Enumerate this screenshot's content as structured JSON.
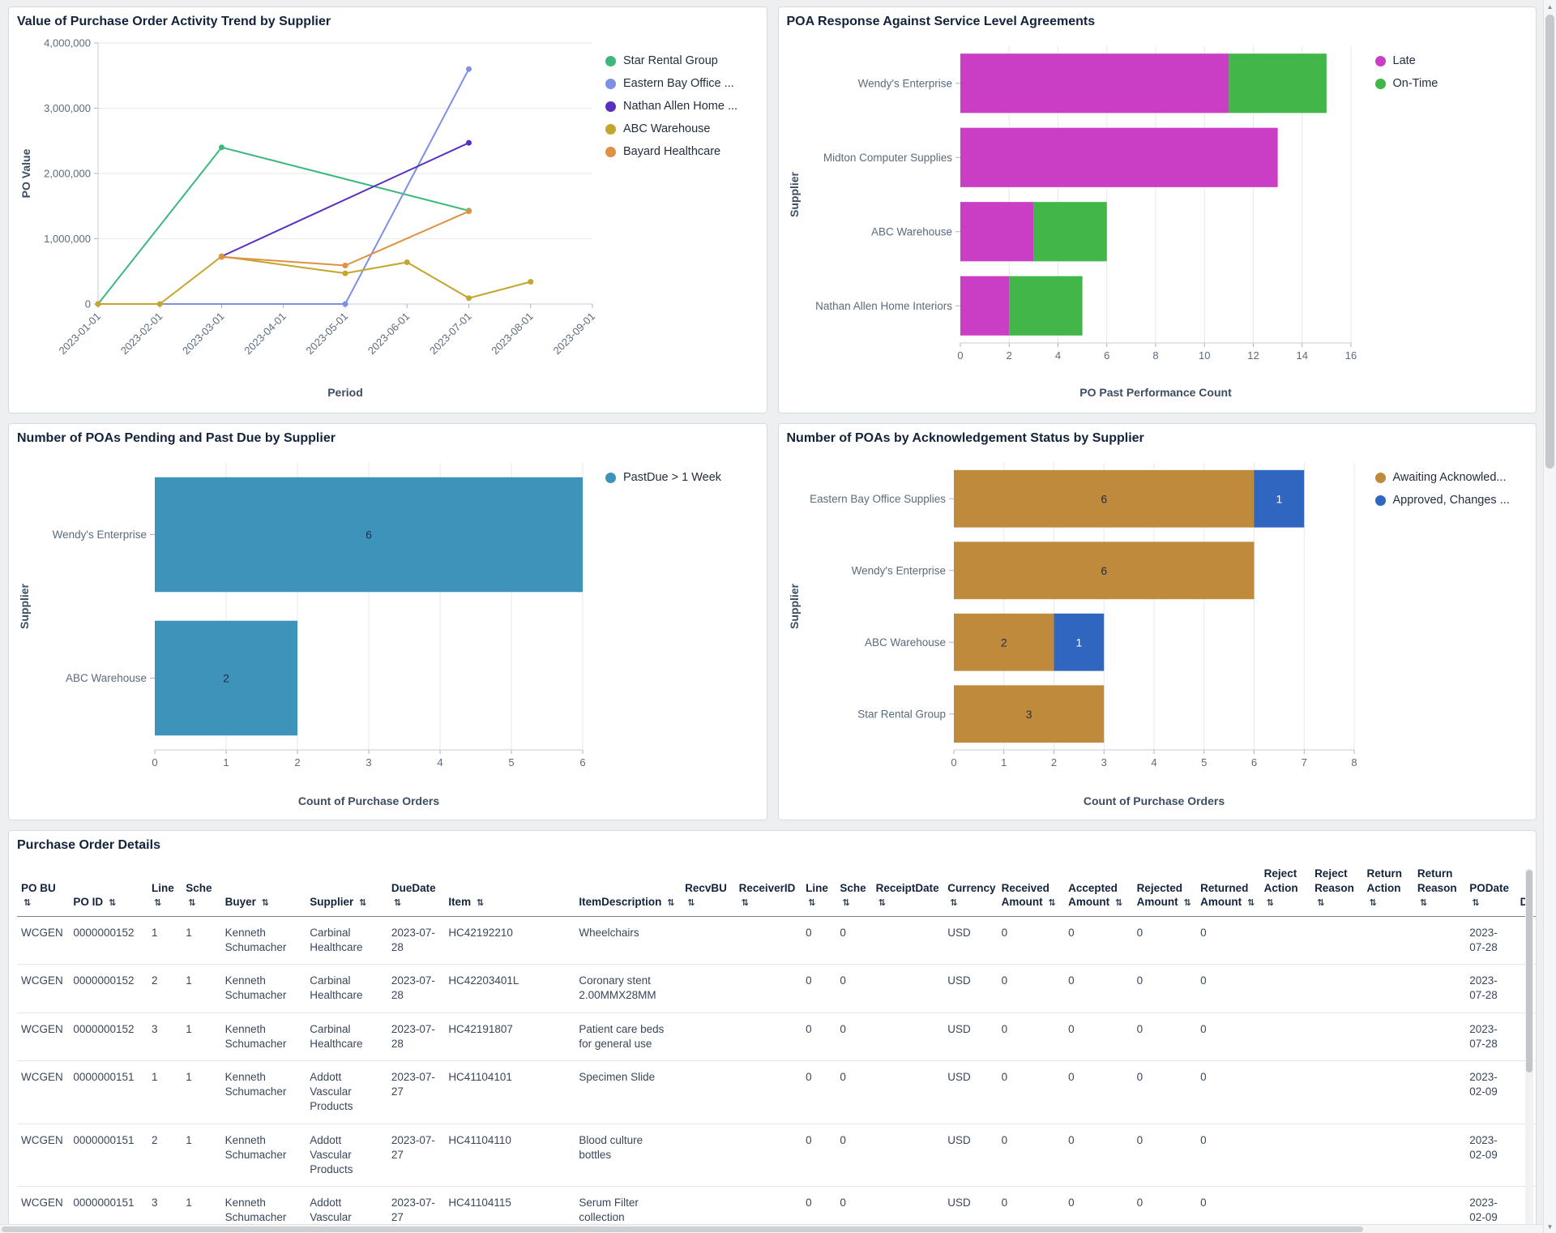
{
  "chart_data": [
    {
      "id": "po_trend",
      "type": "line",
      "title": "Value of Purchase Order Activity Trend by Supplier",
      "xlabel": "Period",
      "ylabel": "PO Value",
      "x_ticks": [
        "2023-01-01",
        "2023-02-01",
        "2023-03-01",
        "2023-04-01",
        "2023-05-01",
        "2023-06-01",
        "2023-07-01",
        "2023-08-01",
        "2023-09-01"
      ],
      "ylim": [
        0,
        4000000
      ],
      "y_ticks": [
        0,
        1000000,
        2000000,
        3000000,
        4000000
      ],
      "grid": true,
      "legend_position": "right",
      "series": [
        {
          "name": "Star Rental Group",
          "color": "#3db87d",
          "points": [
            [
              "2023-01-01",
              0
            ],
            [
              "2023-03-01",
              2400000
            ],
            [
              "2023-07-01",
              1430000
            ]
          ]
        },
        {
          "name": "Eastern Bay Office ...",
          "color": "#7d90e3",
          "points": [
            [
              "2023-01-01",
              0
            ],
            [
              "2023-05-01",
              0
            ],
            [
              "2023-07-01",
              3600000
            ]
          ]
        },
        {
          "name": "Nathan Allen Home ...",
          "color": "#5a2fc0",
          "points": [
            [
              "2023-03-01",
              730000
            ],
            [
              "2023-07-01",
              2470000
            ]
          ]
        },
        {
          "name": "ABC Warehouse",
          "color": "#c4a62f",
          "points": [
            [
              "2023-01-01",
              0
            ],
            [
              "2023-02-01",
              0
            ],
            [
              "2023-03-01",
              730000
            ],
            [
              "2023-05-01",
              470000
            ],
            [
              "2023-06-01",
              640000
            ],
            [
              "2023-07-01",
              90000
            ],
            [
              "2023-08-01",
              340000
            ]
          ]
        },
        {
          "name": "Bayard Healthcare",
          "color": "#de9140",
          "points": [
            [
              "2023-03-01",
              720000
            ],
            [
              "2023-05-01",
              590000
            ],
            [
              "2023-07-01",
              1420000
            ]
          ]
        }
      ]
    },
    {
      "id": "sla",
      "type": "bar",
      "orientation": "horizontal-stacked",
      "title": "POA Response Against Service Level Agreements",
      "xlabel": "PO Past Performance Count",
      "ylabel": "Supplier",
      "categories": [
        "Wendy's Enterprise",
        "Midton Computer Supplies",
        "ABC Warehouse",
        "Nathan Allen Home Interiors"
      ],
      "xlim": [
        0,
        16
      ],
      "tick_step": 2,
      "grid": true,
      "legend_position": "right",
      "show_values": false,
      "series": [
        {
          "name": "Late",
          "color": "#c93ec4",
          "values": [
            11,
            13,
            3,
            2
          ]
        },
        {
          "name": "On-Time",
          "color": "#41b649",
          "values": [
            4,
            0,
            3,
            3
          ]
        }
      ]
    },
    {
      "id": "pending",
      "type": "bar",
      "orientation": "horizontal",
      "title": "Number of POAs Pending and Past Due by Supplier",
      "xlabel": "Count of Purchase Orders",
      "ylabel": "Supplier",
      "categories": [
        "Wendy's Enterprise",
        "ABC Warehouse"
      ],
      "xlim": [
        0,
        6
      ],
      "tick_step": 1,
      "grid": true,
      "legend_position": "right",
      "show_values": true,
      "series": [
        {
          "name": "PastDue > 1 Week",
          "color": "#3e93bb",
          "values": [
            6,
            2
          ],
          "value_color": "#222f42"
        }
      ]
    },
    {
      "id": "ack",
      "type": "bar",
      "orientation": "horizontal-stacked",
      "title": "Number of POAs by Acknowledgement Status by Supplier",
      "xlabel": "Count of Purchase Orders",
      "ylabel": "Supplier",
      "categories": [
        "Eastern Bay Office Supplies",
        "Wendy's Enterprise",
        "ABC Warehouse",
        "Star Rental Group"
      ],
      "xlim": [
        0,
        8
      ],
      "tick_step": 1,
      "grid": true,
      "legend_position": "right",
      "show_values": true,
      "series": [
        {
          "name": "Awaiting Acknowled...",
          "color": "#c08a3c",
          "values": [
            6,
            6,
            2,
            3
          ],
          "value_color": "#222f42"
        },
        {
          "name": "Approved, Changes ...",
          "color": "#3066bf",
          "values": [
            1,
            0,
            1,
            0
          ],
          "value_color": "#ffffff"
        }
      ]
    }
  ],
  "table": {
    "title": "Purchase Order Details",
    "sort_icon": "⇅",
    "columns": [
      "PO BU",
      "PO ID",
      "Line",
      "Sche",
      "Buyer",
      "Supplier",
      "DueDate",
      "Item",
      "ItemDescription",
      "RecvBU",
      "ReceiverID",
      "Line",
      "Sche",
      "ReceiptDate",
      "Currency",
      "Received Amount",
      "Accepted Amount",
      "Rejected Amount",
      "Returned Amount",
      "Reject Action",
      "Reject Reason",
      "Return Action",
      "Return Reason",
      "PODate",
      "D"
    ],
    "rows": [
      [
        "WCGEN",
        "0000000152",
        "1",
        "1",
        "Kenneth Schumacher",
        "Carbinal Healthcare",
        "2023-07-28",
        "HC42192210",
        "Wheelchairs",
        "",
        "",
        "0",
        "0",
        "",
        "USD",
        "0",
        "0",
        "0",
        "0",
        "",
        "",
        "",
        "",
        "2023-07-28",
        ""
      ],
      [
        "WCGEN",
        "0000000152",
        "2",
        "1",
        "Kenneth Schumacher",
        "Carbinal Healthcare",
        "2023-07-28",
        "HC42203401L",
        "Coronary stent 2.00MMX28MM",
        "",
        "",
        "0",
        "0",
        "",
        "USD",
        "0",
        "0",
        "0",
        "0",
        "",
        "",
        "",
        "",
        "2023-07-28",
        ""
      ],
      [
        "WCGEN",
        "0000000152",
        "3",
        "1",
        "Kenneth Schumacher",
        "Carbinal Healthcare",
        "2023-07-28",
        "HC42191807",
        "Patient care beds for general use",
        "",
        "",
        "0",
        "0",
        "",
        "USD",
        "0",
        "0",
        "0",
        "0",
        "",
        "",
        "",
        "",
        "2023-07-28",
        ""
      ],
      [
        "WCGEN",
        "0000000151",
        "1",
        "1",
        "Kenneth Schumacher",
        "Addott Vascular Products",
        "2023-07-27",
        "HC41104101",
        "Specimen Slide",
        "",
        "",
        "0",
        "0",
        "",
        "USD",
        "0",
        "0",
        "0",
        "0",
        "",
        "",
        "",
        "",
        "2023-02-09",
        ""
      ],
      [
        "WCGEN",
        "0000000151",
        "2",
        "1",
        "Kenneth Schumacher",
        "Addott Vascular Products",
        "2023-07-27",
        "HC41104110",
        "Blood culture bottles",
        "",
        "",
        "0",
        "0",
        "",
        "USD",
        "0",
        "0",
        "0",
        "0",
        "",
        "",
        "",
        "",
        "2023-02-09",
        ""
      ],
      [
        "WCGEN",
        "0000000151",
        "3",
        "1",
        "Kenneth Schumacher",
        "Addott Vascular Products",
        "2023-07-27",
        "HC41104115",
        "Serum Filter collection",
        "",
        "",
        "0",
        "0",
        "",
        "USD",
        "0",
        "0",
        "0",
        "0",
        "",
        "",
        "",
        "",
        "2023-02-09",
        ""
      ]
    ]
  },
  "scrollbar": {
    "up": "▲",
    "down": "▼"
  }
}
